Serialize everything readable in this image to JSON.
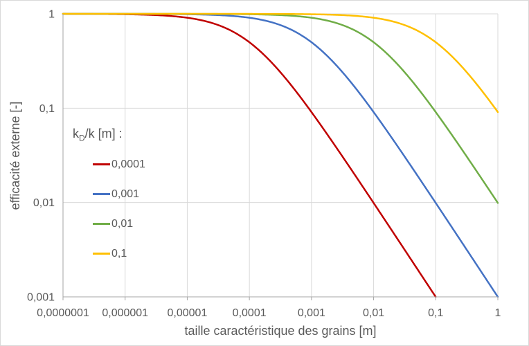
{
  "style": {
    "background": "#FFFFFF",
    "border_color": "#D9D9D9",
    "grid_color": "#D9D9D9",
    "axis_color": "#A6A6A6",
    "text_color": "#595959"
  },
  "legend": {
    "title_pre": "k",
    "title_sub": "D",
    "title_post": "/k [m] :"
  },
  "chart_data": {
    "type": "line",
    "title": "",
    "xlabel": "taille caractéristique des grains [m]",
    "ylabel": "efficacité externe [-]",
    "xscale": "log",
    "yscale": "log",
    "xlim": [
      1e-07,
      1
    ],
    "ylim": [
      0.001,
      1
    ],
    "grid": true,
    "legend_position": "inside-left",
    "legend_title": "kD/k [m] :",
    "x_tick_values": [
      1e-07,
      1e-06,
      1e-05,
      0.0001,
      0.001,
      0.01,
      0.1,
      1
    ],
    "x_tick_labels": [
      "0,0000001",
      "0,000001",
      "0,00001",
      "0,0001",
      "0,001",
      "0,01",
      "0,1",
      "1"
    ],
    "y_tick_values": [
      1,
      0.1,
      0.01,
      0.001
    ],
    "y_tick_labels": [
      "1",
      "0,1",
      "0,01",
      "0,001"
    ],
    "model": "y = 1 / (1 + x / kDk)",
    "series": [
      {
        "name": "0,0001",
        "kDk": 0.0001,
        "color": "#C00000",
        "points": {
          "x": [
            1e-07,
            1e-06,
            1e-05,
            0.0001,
            0.001,
            0.01,
            0.0999
          ],
          "y": [
            0.999,
            0.99,
            0.909,
            0.5,
            0.0909,
            0.0099,
            0.001
          ]
        }
      },
      {
        "name": "0,001",
        "kDk": 0.001,
        "color": "#4472C4",
        "points": {
          "x": [
            1e-07,
            1e-06,
            1e-05,
            0.0001,
            0.001,
            0.01,
            0.1,
            0.999
          ],
          "y": [
            0.9999,
            0.999,
            0.99,
            0.909,
            0.5,
            0.0909,
            0.0099,
            0.001
          ]
        }
      },
      {
        "name": "0,01",
        "kDk": 0.01,
        "color": "#70AD47",
        "points": {
          "x": [
            1e-07,
            1e-06,
            1e-05,
            0.0001,
            0.001,
            0.01,
            0.1,
            1
          ],
          "y": [
            0.99999,
            0.9999,
            0.999,
            0.99,
            0.909,
            0.5,
            0.0909,
            0.0099
          ]
        }
      },
      {
        "name": "0,1",
        "kDk": 0.1,
        "color": "#FFC000",
        "points": {
          "x": [
            1e-07,
            1e-06,
            1e-05,
            0.0001,
            0.001,
            0.01,
            0.1,
            1
          ],
          "y": [
            0.999999,
            0.99999,
            0.9999,
            0.999,
            0.99,
            0.909,
            0.5,
            0.0909
          ]
        }
      }
    ]
  }
}
